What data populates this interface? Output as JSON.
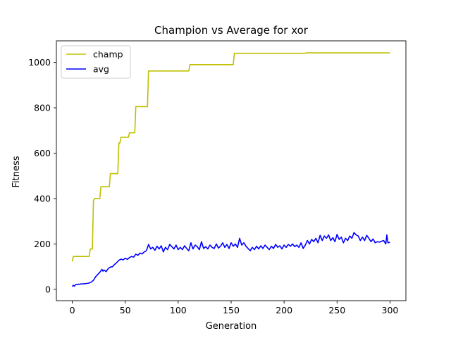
{
  "chart_data": {
    "type": "line",
    "title": "Champion vs Average for xor",
    "xlabel": "Generation",
    "ylabel": "Fitness",
    "xlim": [
      -15,
      315
    ],
    "ylim": [
      -50,
      1095
    ],
    "xticks": [
      0,
      50,
      100,
      150,
      200,
      250,
      300
    ],
    "yticks": [
      0,
      200,
      400,
      600,
      800,
      1000
    ],
    "grid": false,
    "legend_position": "top-left",
    "series": [
      {
        "name": "champ",
        "color": "#bfbf00",
        "points": [
          [
            0,
            123
          ],
          [
            1,
            145
          ],
          [
            16,
            145
          ],
          [
            17,
            178
          ],
          [
            19,
            178
          ],
          [
            20,
            390
          ],
          [
            21,
            400
          ],
          [
            26,
            400
          ],
          [
            27,
            452
          ],
          [
            35,
            452
          ],
          [
            36,
            510
          ],
          [
            43,
            510
          ],
          [
            44,
            645
          ],
          [
            45,
            645
          ],
          [
            46,
            670
          ],
          [
            53,
            670
          ],
          [
            54,
            690
          ],
          [
            59,
            690
          ],
          [
            60,
            805
          ],
          [
            71,
            805
          ],
          [
            72,
            962
          ],
          [
            110,
            962
          ],
          [
            111,
            990
          ],
          [
            152,
            990
          ],
          [
            153,
            1040
          ],
          [
            220,
            1040
          ],
          [
            221,
            1042
          ],
          [
            300,
            1042
          ]
        ]
      },
      {
        "name": "avg",
        "color": "#0000ff",
        "points": [
          [
            0,
            12
          ],
          [
            1,
            18
          ],
          [
            2,
            14
          ],
          [
            3,
            20
          ],
          [
            4,
            22
          ],
          [
            5,
            21
          ],
          [
            6,
            23
          ],
          [
            7,
            22
          ],
          [
            8,
            24
          ],
          [
            10,
            24
          ],
          [
            12,
            25
          ],
          [
            14,
            26
          ],
          [
            16,
            28
          ],
          [
            18,
            32
          ],
          [
            20,
            40
          ],
          [
            22,
            55
          ],
          [
            24,
            65
          ],
          [
            26,
            75
          ],
          [
            28,
            88
          ],
          [
            29,
            80
          ],
          [
            30,
            85
          ],
          [
            32,
            78
          ],
          [
            34,
            92
          ],
          [
            36,
            98
          ],
          [
            38,
            100
          ],
          [
            40,
            110
          ],
          [
            42,
            118
          ],
          [
            44,
            128
          ],
          [
            46,
            133
          ],
          [
            48,
            130
          ],
          [
            50,
            137
          ],
          [
            52,
            132
          ],
          [
            54,
            140
          ],
          [
            56,
            145
          ],
          [
            58,
            142
          ],
          [
            60,
            155
          ],
          [
            62,
            150
          ],
          [
            64,
            160
          ],
          [
            66,
            156
          ],
          [
            68,
            165
          ],
          [
            70,
            170
          ],
          [
            72,
            198
          ],
          [
            74,
            178
          ],
          [
            76,
            185
          ],
          [
            78,
            172
          ],
          [
            80,
            190
          ],
          [
            82,
            178
          ],
          [
            84,
            192
          ],
          [
            86,
            165
          ],
          [
            88,
            185
          ],
          [
            90,
            175
          ],
          [
            92,
            198
          ],
          [
            94,
            188
          ],
          [
            96,
            178
          ],
          [
            98,
            195
          ],
          [
            100,
            175
          ],
          [
            102,
            185
          ],
          [
            104,
            175
          ],
          [
            106,
            192
          ],
          [
            108,
            180
          ],
          [
            110,
            170
          ],
          [
            112,
            205
          ],
          [
            114,
            178
          ],
          [
            116,
            195
          ],
          [
            118,
            188
          ],
          [
            120,
            175
          ],
          [
            122,
            210
          ],
          [
            124,
            180
          ],
          [
            126,
            188
          ],
          [
            128,
            178
          ],
          [
            130,
            195
          ],
          [
            132,
            185
          ],
          [
            134,
            180
          ],
          [
            136,
            200
          ],
          [
            138,
            182
          ],
          [
            140,
            190
          ],
          [
            142,
            205
          ],
          [
            144,
            185
          ],
          [
            146,
            198
          ],
          [
            148,
            180
          ],
          [
            150,
            205
          ],
          [
            152,
            190
          ],
          [
            154,
            200
          ],
          [
            156,
            185
          ],
          [
            158,
            225
          ],
          [
            160,
            195
          ],
          [
            162,
            205
          ],
          [
            164,
            190
          ],
          [
            166,
            180
          ],
          [
            168,
            170
          ],
          [
            170,
            185
          ],
          [
            172,
            175
          ],
          [
            174,
            190
          ],
          [
            176,
            178
          ],
          [
            178,
            192
          ],
          [
            180,
            180
          ],
          [
            182,
            195
          ],
          [
            184,
            185
          ],
          [
            186,
            175
          ],
          [
            188,
            190
          ],
          [
            190,
            180
          ],
          [
            192,
            198
          ],
          [
            194,
            185
          ],
          [
            196,
            192
          ],
          [
            198,
            178
          ],
          [
            200,
            195
          ],
          [
            202,
            185
          ],
          [
            204,
            198
          ],
          [
            206,
            190
          ],
          [
            208,
            200
          ],
          [
            210,
            188
          ],
          [
            212,
            195
          ],
          [
            214,
            185
          ],
          [
            216,
            205
          ],
          [
            218,
            180
          ],
          [
            220,
            195
          ],
          [
            222,
            215
          ],
          [
            224,
            200
          ],
          [
            226,
            220
          ],
          [
            228,
            210
          ],
          [
            230,
            225
          ],
          [
            232,
            205
          ],
          [
            234,
            238
          ],
          [
            236,
            215
          ],
          [
            238,
            235
          ],
          [
            240,
            225
          ],
          [
            242,
            240
          ],
          [
            244,
            215
          ],
          [
            246,
            228
          ],
          [
            248,
            210
          ],
          [
            250,
            242
          ],
          [
            252,
            220
          ],
          [
            254,
            230
          ],
          [
            256,
            205
          ],
          [
            258,
            225
          ],
          [
            260,
            215
          ],
          [
            262,
            235
          ],
          [
            264,
            225
          ],
          [
            266,
            250
          ],
          [
            268,
            240
          ],
          [
            270,
            235
          ],
          [
            272,
            215
          ],
          [
            274,
            230
          ],
          [
            276,
            215
          ],
          [
            278,
            238
          ],
          [
            280,
            225
          ],
          [
            282,
            210
          ],
          [
            284,
            222
          ],
          [
            286,
            205
          ],
          [
            288,
            210
          ],
          [
            290,
            208
          ],
          [
            292,
            212
          ],
          [
            294,
            215
          ],
          [
            296,
            200
          ],
          [
            297,
            240
          ],
          [
            298,
            205
          ],
          [
            300,
            207
          ]
        ]
      }
    ]
  }
}
